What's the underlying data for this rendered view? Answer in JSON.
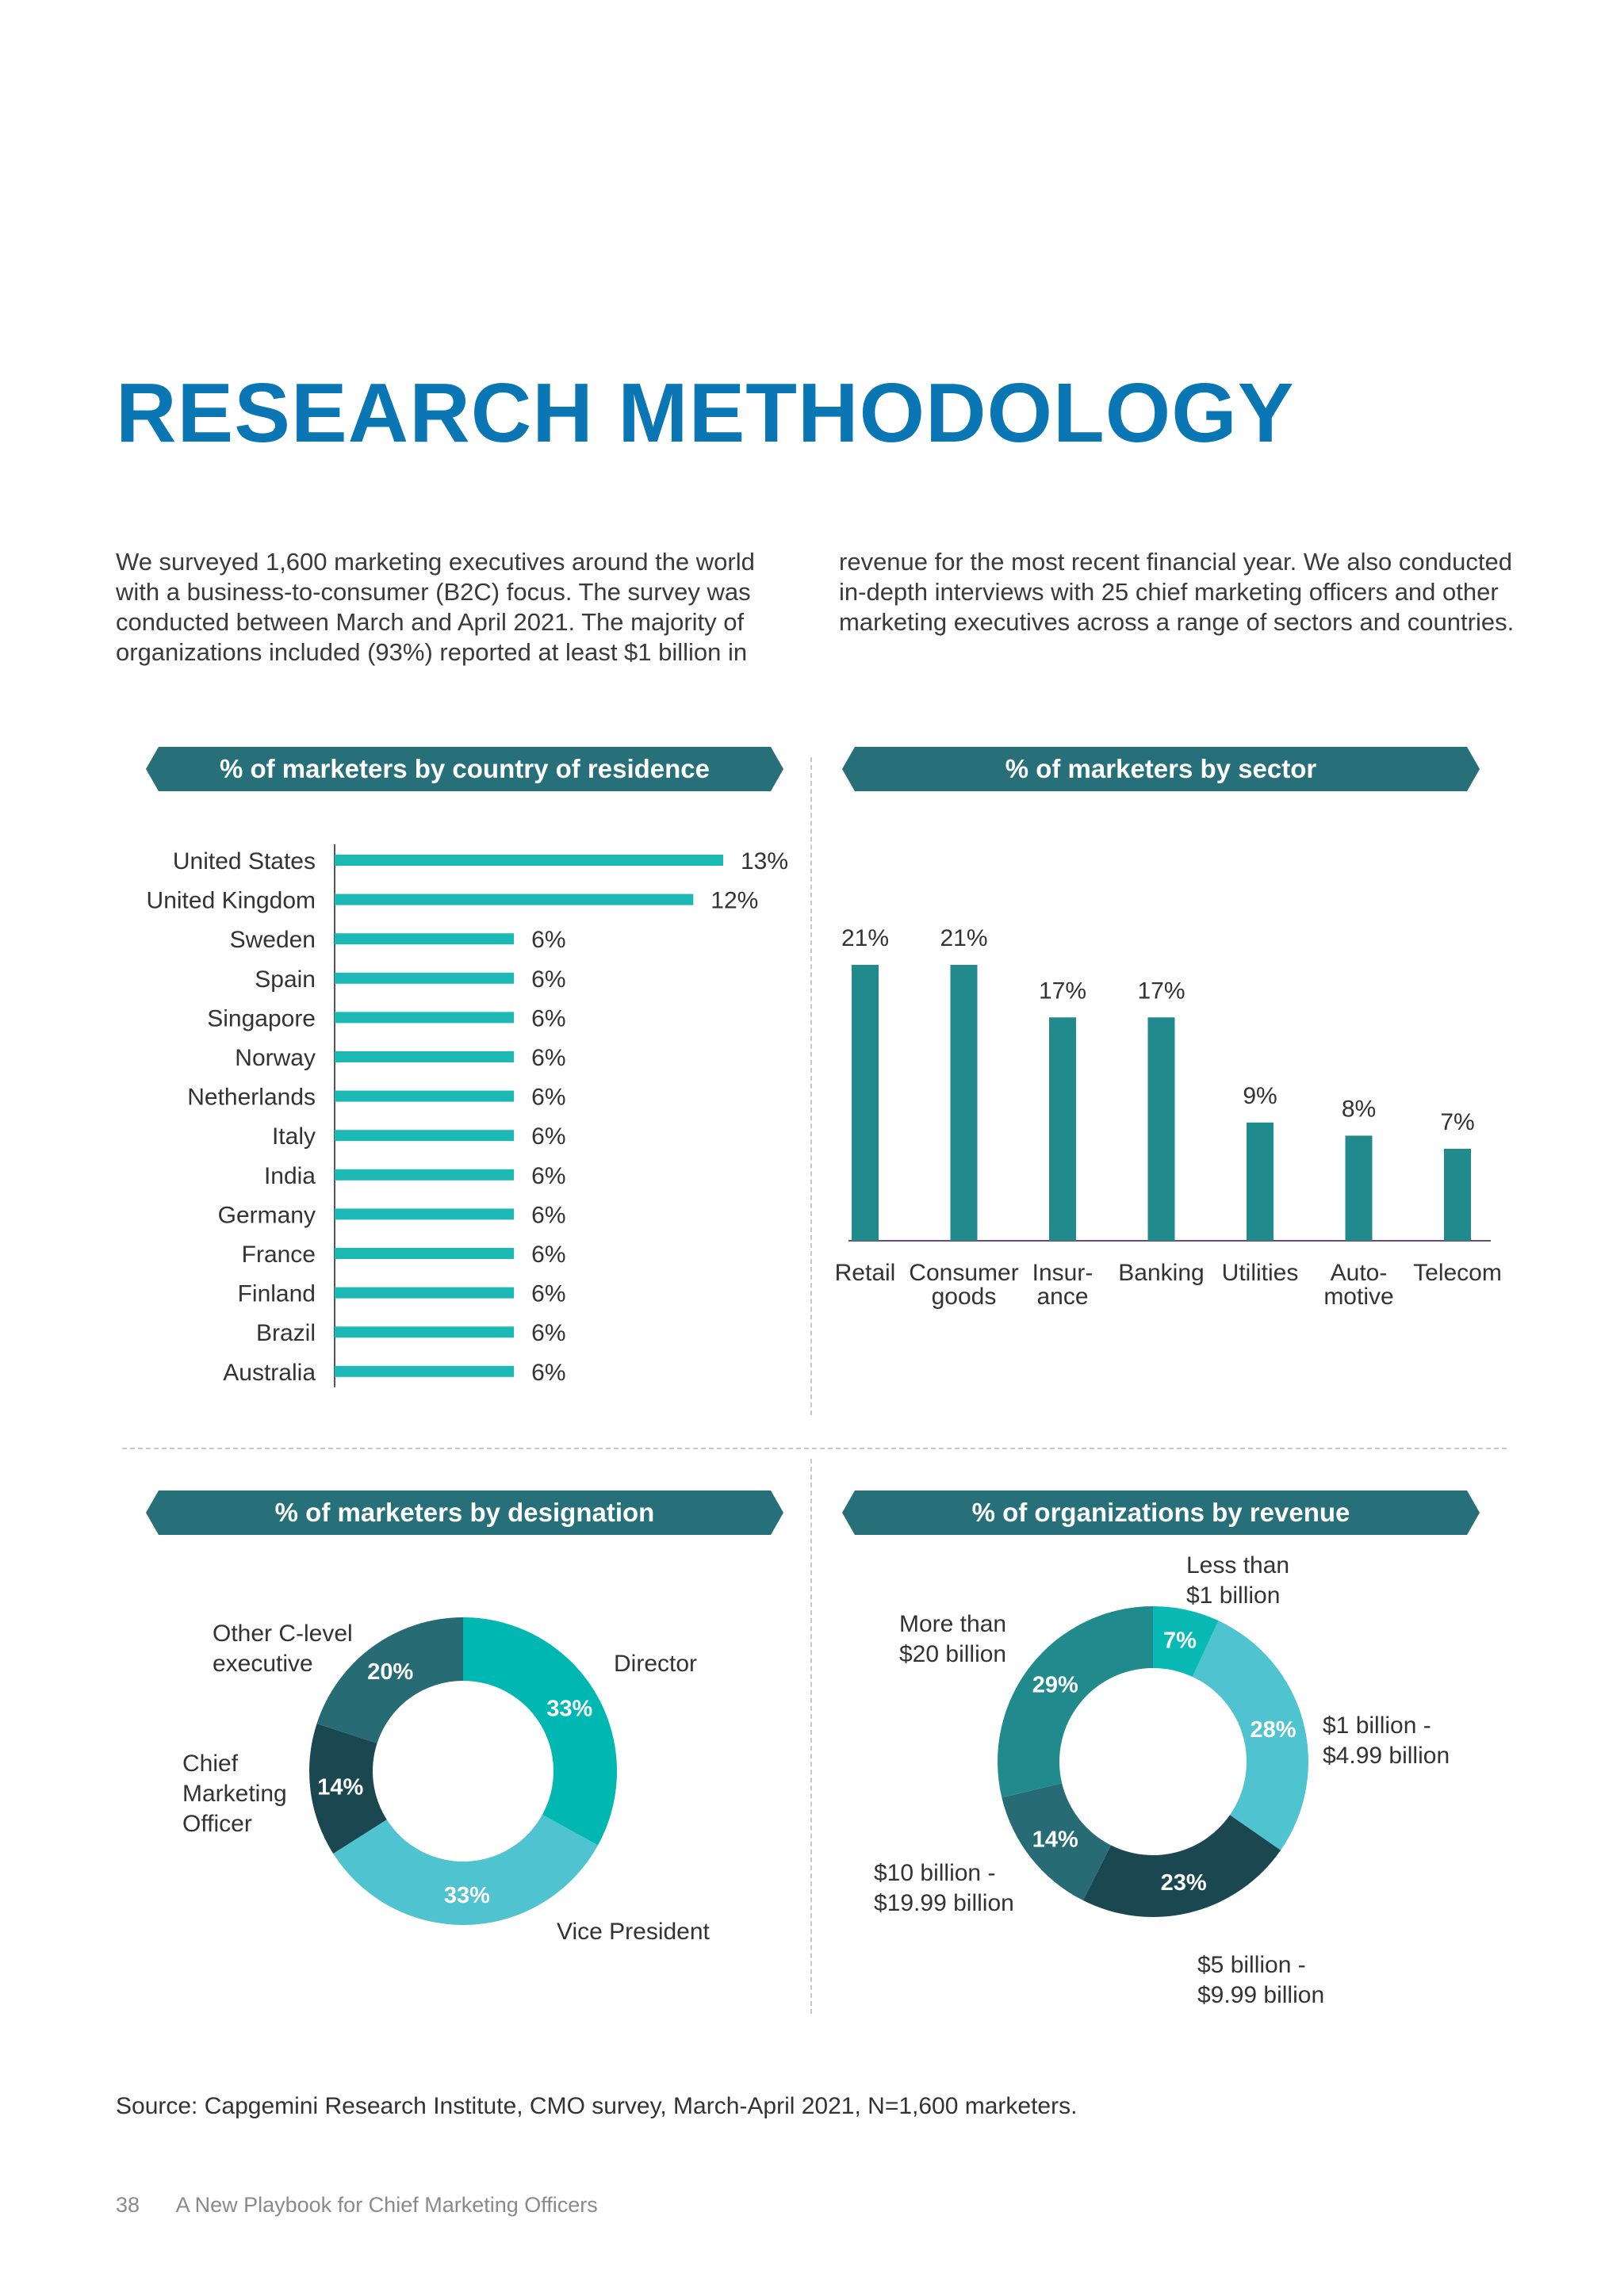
{
  "page": {
    "title": "RESEARCH METHODOLOGY",
    "intro_left": "We surveyed 1,600 marketing executives around the world with a business-to-consumer (B2C) focus. The survey was conducted between March and April 2021. The majority of organizations included (93%) reported at least $1 billion in",
    "intro_right": "revenue for the most recent financial year. We also conducted in-depth interviews with 25 chief marketing officers and other marketing executives across a range of sectors and countries.",
    "source": "Source: Capgemini Research Institute, CMO survey, March-April 2021, N=1,600 marketers.",
    "page_number": "38",
    "footer_title": "A New Playbook for  Chief Marketing Officers"
  },
  "colors": {
    "title": "#0a77b4",
    "banner": "#27707a",
    "country_bar": "#1bb8b4",
    "sector_bar": "#218a8c",
    "sector_axis": "#6a4a7a"
  },
  "chart_data": [
    {
      "id": "country",
      "type": "bar",
      "orientation": "horizontal",
      "title": "% of marketers by country of residence",
      "categories": [
        "United States",
        "United Kingdom",
        "Sweden",
        "Spain",
        "Singapore",
        "Norway",
        "Netherlands",
        "Italy",
        "India",
        "Germany",
        "France",
        "Finland",
        "Brazil",
        "Australia"
      ],
      "values": [
        13,
        12,
        6,
        6,
        6,
        6,
        6,
        6,
        6,
        6,
        6,
        6,
        6,
        6
      ],
      "labels": [
        "13%",
        "12%",
        "6%",
        "6%",
        "6%",
        "6%",
        "6%",
        "6%",
        "6%",
        "6%",
        "6%",
        "6%",
        "6%",
        "6%"
      ],
      "xlim": [
        0,
        13
      ]
    },
    {
      "id": "sector",
      "type": "bar",
      "orientation": "vertical",
      "title": "% of marketers by sector",
      "categories": [
        [
          "Retail"
        ],
        [
          "Consumer",
          "goods"
        ],
        [
          "Insur-",
          "ance"
        ],
        [
          "Banking"
        ],
        [
          "Utilities"
        ],
        [
          "Auto-",
          "motive"
        ],
        [
          "Telecom"
        ]
      ],
      "values": [
        21,
        21,
        17,
        17,
        9,
        8,
        7
      ],
      "labels": [
        "21%",
        "21%",
        "17%",
        "17%",
        "9%",
        "8%",
        "7%"
      ],
      "ylim": [
        0,
        21
      ]
    },
    {
      "id": "designation",
      "type": "pie",
      "donut": true,
      "title": "% of marketers by designation",
      "slices": [
        {
          "name": [
            "Director"
          ],
          "value": 33,
          "label": "33%",
          "color": "#00b7b2"
        },
        {
          "name": [
            "Vice President"
          ],
          "value": 33,
          "label": "33%",
          "color": "#4fc3cf"
        },
        {
          "name": [
            "Chief",
            "Marketing",
            "Officer"
          ],
          "value": 14,
          "label": "14%",
          "color": "#1b4850"
        },
        {
          "name": [
            "Other C-level",
            "executive"
          ],
          "value": 20,
          "label": "20%",
          "color": "#276b74"
        }
      ]
    },
    {
      "id": "revenue",
      "type": "pie",
      "donut": true,
      "title": "% of organizations by revenue",
      "slices": [
        {
          "name": [
            "Less than",
            "$1 billion"
          ],
          "value": 7,
          "label": "7%",
          "color": "#08b9b4"
        },
        {
          "name": [
            "$1 billion -",
            "$4.99 billion"
          ],
          "value": 28,
          "label": "28%",
          "color": "#4fc3cf"
        },
        {
          "name": [
            "$5 billion -",
            "$9.99 billion"
          ],
          "value": 23,
          "label": "23%",
          "color": "#1b4850"
        },
        {
          "name": [
            "$10 billion -",
            "$19.99 billion"
          ],
          "value": 14,
          "label": "14%",
          "color": "#276b74"
        },
        {
          "name": [
            "More than",
            "$20 billion"
          ],
          "value": 29,
          "label": "29%",
          "color": "#218a8c"
        }
      ]
    }
  ]
}
